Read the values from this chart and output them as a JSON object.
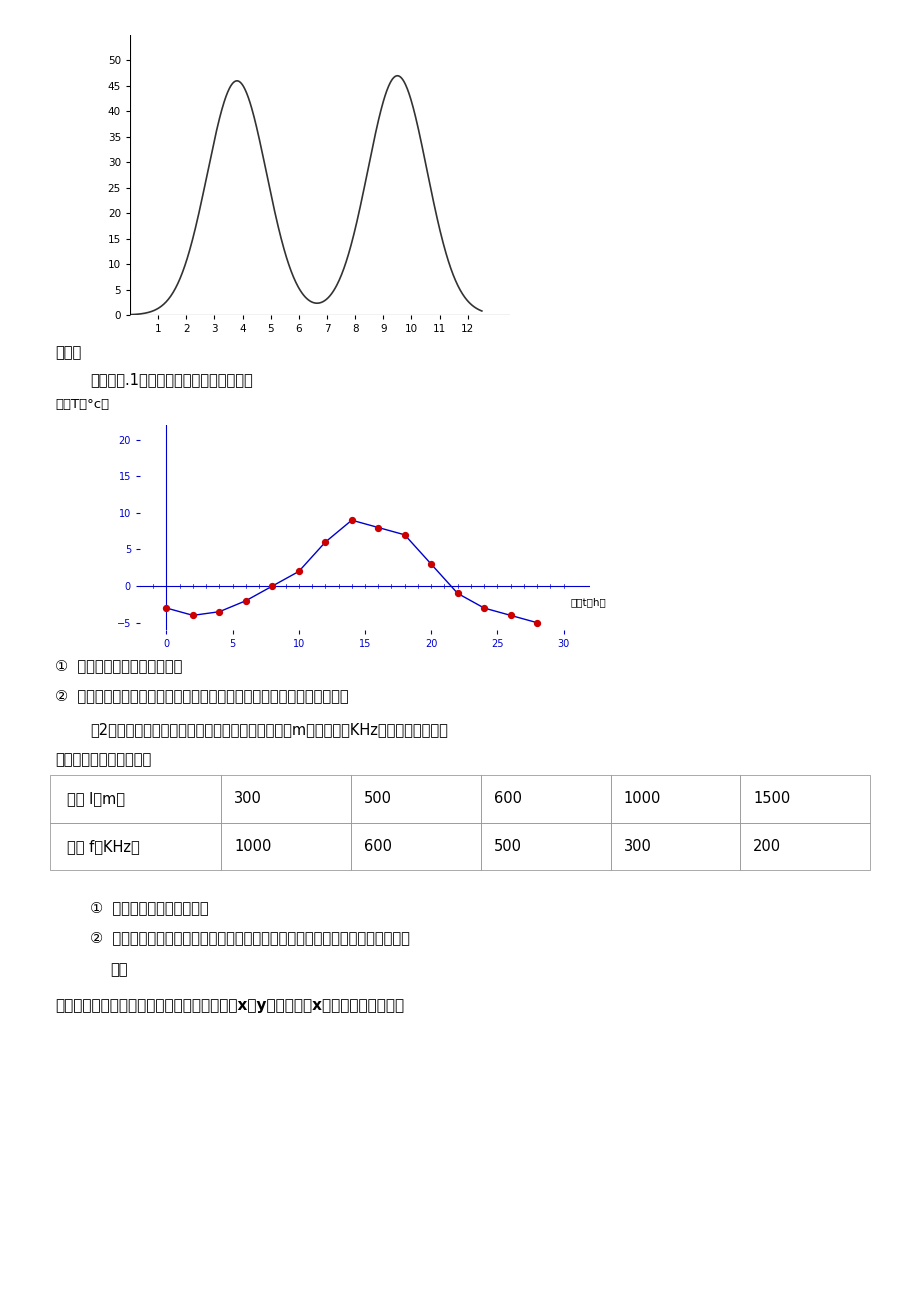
{
  "bg_color": "#ffffff",
  "page_width": 9.2,
  "page_height": 13.02,
  "top_chart": {
    "x_ticks": [
      1,
      2,
      3,
      4,
      5,
      6,
      7,
      8,
      9,
      10,
      11,
      12
    ],
    "y_ticks": [
      0,
      5,
      10,
      15,
      20,
      25,
      30,
      35,
      40,
      45,
      50
    ],
    "curve_color": "#333333",
    "peak1_x": 3.8,
    "peak1_y": 46,
    "valley_x": 6.3,
    "valley_y": 3,
    "peak2_x": 9.5,
    "peak2_y": 47,
    "xlim_max": 13.5
  },
  "temp_chart": {
    "ylabel": "温度T（°c）",
    "xlabel": "时间t（h）",
    "line_color": "#0000cc",
    "dot_color": "#cc0000",
    "x_data": [
      0,
      2,
      4,
      6,
      8,
      10,
      12,
      14,
      16,
      18,
      20,
      22,
      24,
      26,
      28
    ],
    "y_data": [
      -3,
      -4,
      -3.5,
      -2,
      0,
      2,
      6,
      9,
      8,
      7,
      3,
      -1,
      -3,
      -4,
      -5
    ],
    "y_ticks": [
      -5,
      0,
      5,
      10,
      15,
      20
    ],
    "x_ticks": [
      0,
      5,
      10,
      15,
      20,
      25,
      30
    ],
    "xlim": [
      -2,
      32
    ],
    "ylim": [
      -6,
      22
    ]
  },
  "texts": {
    "xinke": "新课：",
    "wenti": "问题：（.1）如图是某日的气温变化图。",
    "temp_ylabel": "温度T（°c）",
    "q1_a": "①  这张图告诉我们哪些信息？",
    "q1_b": "②  这张图是怎样来展示这天各时刻的温度和刻画这铁的气温变化规律的？",
    "radio_text": "（2）收音机上的刻度盘的波长和频率分别是用米（m）和赫兹（KHz）为单位标刻的，",
    "table_intro": "下表中是一些对应的数：",
    "table_row1_header": "波长 l（m）",
    "table_row1_vals": [
      "300",
      "500",
      "600",
      "1000",
      "1500"
    ],
    "table_row2_header": "频率 f（KHz）",
    "table_row2_vals": [
      "1000",
      "600",
      "500",
      "300",
      "200"
    ],
    "q2_a": "①  这表告诉我们哪些信息？",
    "q2_b": "②  这张表是怎样刻画波长和频率之间的变化规律的，你能用一个表达式表示出来",
    "q2_c": "吗？",
    "general": "一般的，在一个变化过程中，如果有两个变量x和y，并且对于x的每一个确定的値，"
  }
}
